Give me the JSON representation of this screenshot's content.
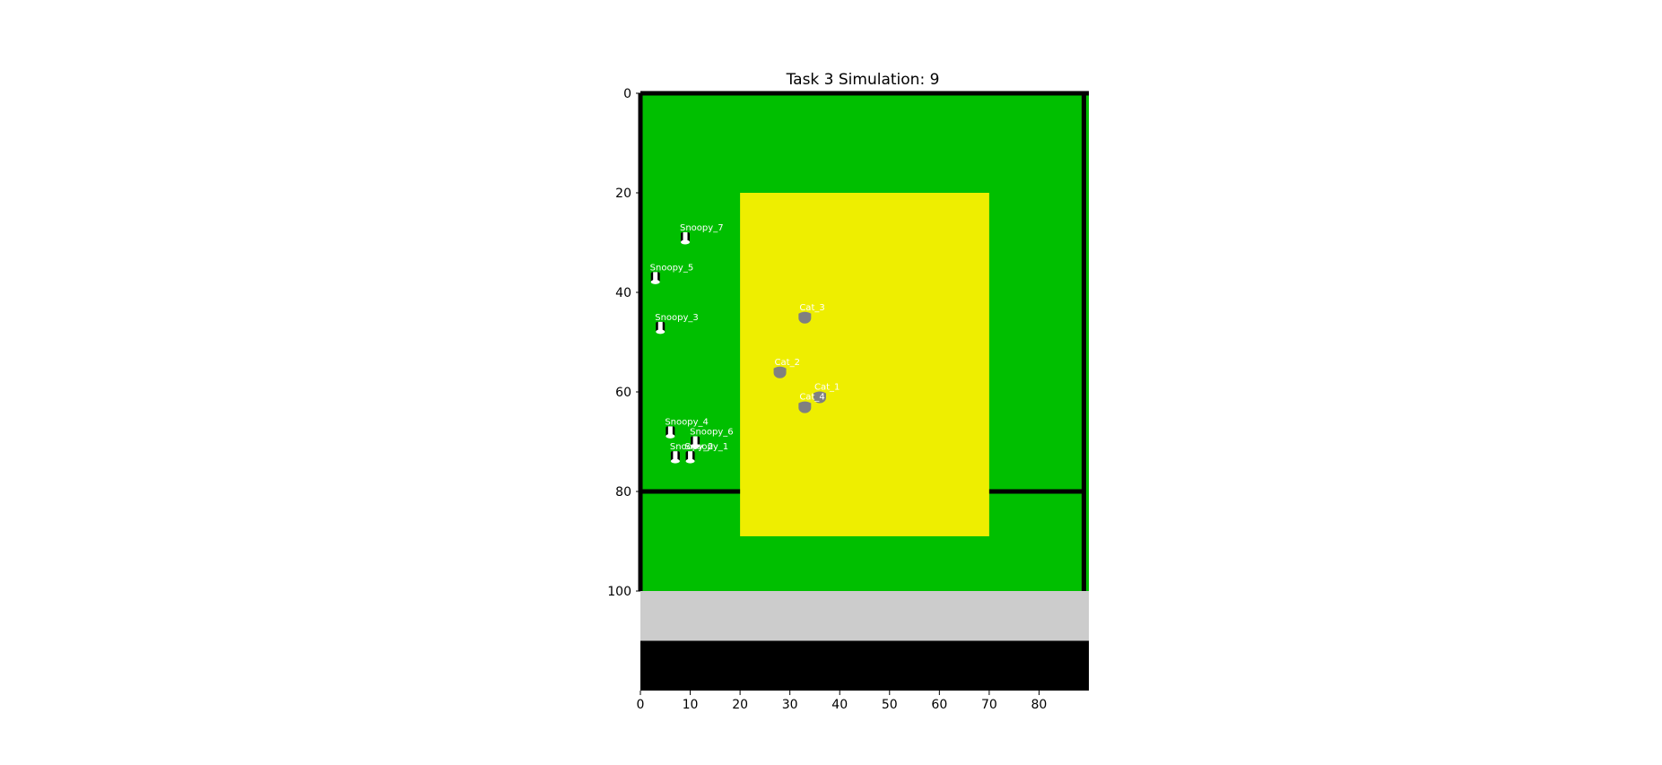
{
  "chart_data": {
    "type": "scatter",
    "title": "Task 3 Simulation: 9",
    "xlabel": "",
    "ylabel": "",
    "xlim": [
      0,
      90
    ],
    "ylim": [
      120,
      0
    ],
    "y_inverted": true,
    "xticks": [
      0,
      10,
      20,
      30,
      40,
      50,
      60,
      70,
      80
    ],
    "yticks": [
      0,
      20,
      40,
      60,
      80,
      100
    ],
    "grid": false,
    "colors": {
      "field": "#00bf00",
      "zone": "#eeee00",
      "gray_band": "#cccccc",
      "bottom_band": "#000000",
      "wall": "#000000",
      "cat": "#808080",
      "label": "#ffffff"
    },
    "regions": [
      {
        "name": "field",
        "x": [
          0,
          90
        ],
        "y": [
          0,
          100
        ],
        "color": "#00bf00"
      },
      {
        "name": "zone",
        "x": [
          20,
          70
        ],
        "y": [
          20,
          89
        ],
        "color": "#eeee00"
      },
      {
        "name": "gray-band",
        "x": [
          0,
          90
        ],
        "y": [
          100,
          110
        ],
        "color": "#cccccc"
      },
      {
        "name": "bottom-band",
        "x": [
          0,
          90
        ],
        "y": [
          110,
          120
        ],
        "color": "#000000"
      }
    ],
    "walls": [
      {
        "name": "top-wall",
        "x": [
          0,
          90
        ],
        "y": [
          0,
          0
        ]
      },
      {
        "name": "left-wall",
        "x": [
          0,
          0
        ],
        "y": [
          0,
          100
        ]
      },
      {
        "name": "right-wall",
        "x": [
          89,
          89
        ],
        "y": [
          0,
          100
        ]
      },
      {
        "name": "divider-wall",
        "x": [
          0,
          20
        ],
        "y": [
          80,
          80
        ]
      },
      {
        "name": "divider-wall-right",
        "x": [
          70,
          89
        ],
        "y": [
          80,
          80
        ]
      }
    ],
    "series": [
      {
        "name": "Snoopy",
        "points": [
          {
            "label": "Snoopy_7",
            "x": 9,
            "y": 29
          },
          {
            "label": "Snoopy_5",
            "x": 3,
            "y": 37
          },
          {
            "label": "Snoopy_3",
            "x": 4,
            "y": 47
          },
          {
            "label": "Snoopy_4",
            "x": 6,
            "y": 68
          },
          {
            "label": "Snoopy_6",
            "x": 11,
            "y": 70
          },
          {
            "label": "Snoopy_2",
            "x": 7,
            "y": 73
          },
          {
            "label": "Snoopy_1",
            "x": 10,
            "y": 73
          }
        ]
      },
      {
        "name": "Cat",
        "points": [
          {
            "label": "Cat_3",
            "x": 33,
            "y": 45
          },
          {
            "label": "Cat_2",
            "x": 28,
            "y": 56
          },
          {
            "label": "Cat_1",
            "x": 36,
            "y": 61
          },
          {
            "label": "Cat_4",
            "x": 33,
            "y": 63
          }
        ]
      }
    ]
  }
}
